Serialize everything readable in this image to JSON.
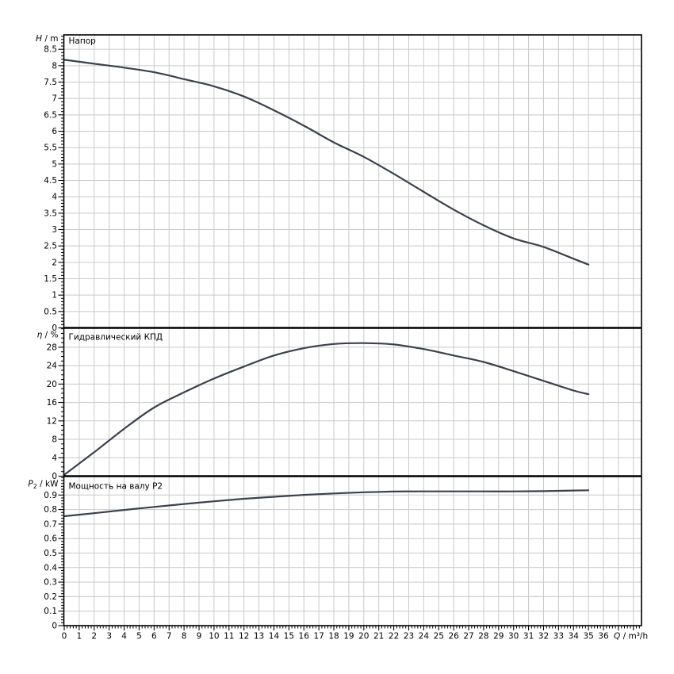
{
  "figure": {
    "background": "#ffffff",
    "curve_color": "#3b424d",
    "grid_color": "#c9c9c9",
    "axis_color": "#000000",
    "text_color": "#000000"
  },
  "x_axis": {
    "caption": "Q / m³/h",
    "caption_segments": [
      {
        "t": "Q",
        "italic": true
      },
      {
        "t": " / m³/h"
      }
    ],
    "tick_labels": [
      0,
      1,
      2,
      3,
      4,
      5,
      6,
      7,
      8,
      9,
      10,
      11,
      12,
      13,
      14,
      15,
      16,
      17,
      18,
      19,
      20,
      21,
      22,
      23,
      24,
      25,
      26,
      27,
      28,
      29,
      30,
      31,
      32,
      33,
      34,
      35,
      36
    ],
    "minor_step": 0.2,
    "range": [
      0,
      38.5
    ]
  },
  "chart_data": [
    {
      "type": "line",
      "title": "Напор",
      "ylabel": "H / m",
      "ylabel_segments": [
        {
          "t": "H",
          "italic": true
        },
        {
          "t": " / m"
        }
      ],
      "ylim": [
        0,
        8.94
      ],
      "yticks": [
        0,
        0.5,
        1,
        1.5,
        2,
        2.5,
        3,
        3.5,
        4,
        4.5,
        5,
        5.5,
        6,
        6.5,
        7,
        7.5,
        8,
        8.5
      ],
      "ytick_minor": 0.1,
      "x": [
        0,
        2,
        4,
        6,
        8,
        10,
        12,
        14,
        16,
        18,
        20,
        22,
        24,
        26,
        28,
        30,
        32,
        34,
        35
      ],
      "values": [
        8.18,
        8.06,
        7.94,
        7.8,
        7.59,
        7.37,
        7.06,
        6.64,
        6.17,
        5.66,
        5.22,
        4.7,
        4.15,
        3.61,
        3.13,
        2.73,
        2.47,
        2.11,
        1.93
      ]
    },
    {
      "type": "line",
      "title": "Гидравлический КПД",
      "ylabel": "η / %",
      "ylabel_segments": [
        {
          "t": "η",
          "italic": true
        },
        {
          "t": " / %"
        }
      ],
      "ylim": [
        0,
        32.2
      ],
      "yticks": [
        0,
        4,
        8,
        12,
        16,
        20,
        24,
        28
      ],
      "ytick_minor": 1,
      "x": [
        0,
        2,
        4,
        6,
        8,
        10,
        12,
        14,
        16,
        18,
        20,
        22,
        24,
        26,
        28,
        30,
        32,
        34,
        35
      ],
      "values": [
        0.3,
        5.2,
        10.3,
        14.9,
        18.2,
        21.2,
        23.8,
        26.2,
        27.8,
        28.7,
        28.9,
        28.6,
        27.6,
        26.2,
        24.8,
        22.8,
        20.7,
        18.6,
        17.8
      ]
    },
    {
      "type": "line",
      "title": "Мощность на валу P2",
      "ylabel": "P₂ / kW",
      "ylabel_segments": [
        {
          "t": "P",
          "italic": true
        },
        {
          "t": "2",
          "sub": true
        },
        {
          "t": " / kW"
        }
      ],
      "ylim": [
        0,
        1.03
      ],
      "yticks": [
        0,
        0.1,
        0.2,
        0.3,
        0.4,
        0.5,
        0.6,
        0.7,
        0.8,
        0.9
      ],
      "ytick_minor": 0.02,
      "x": [
        0,
        2,
        4,
        6,
        8,
        10,
        12,
        14,
        16,
        18,
        20,
        22,
        24,
        26,
        28,
        30,
        32,
        34,
        35
      ],
      "values": [
        0.754,
        0.775,
        0.797,
        0.818,
        0.838,
        0.857,
        0.874,
        0.888,
        0.901,
        0.911,
        0.919,
        0.924,
        0.925,
        0.925,
        0.925,
        0.925,
        0.927,
        0.931,
        0.933
      ]
    }
  ]
}
